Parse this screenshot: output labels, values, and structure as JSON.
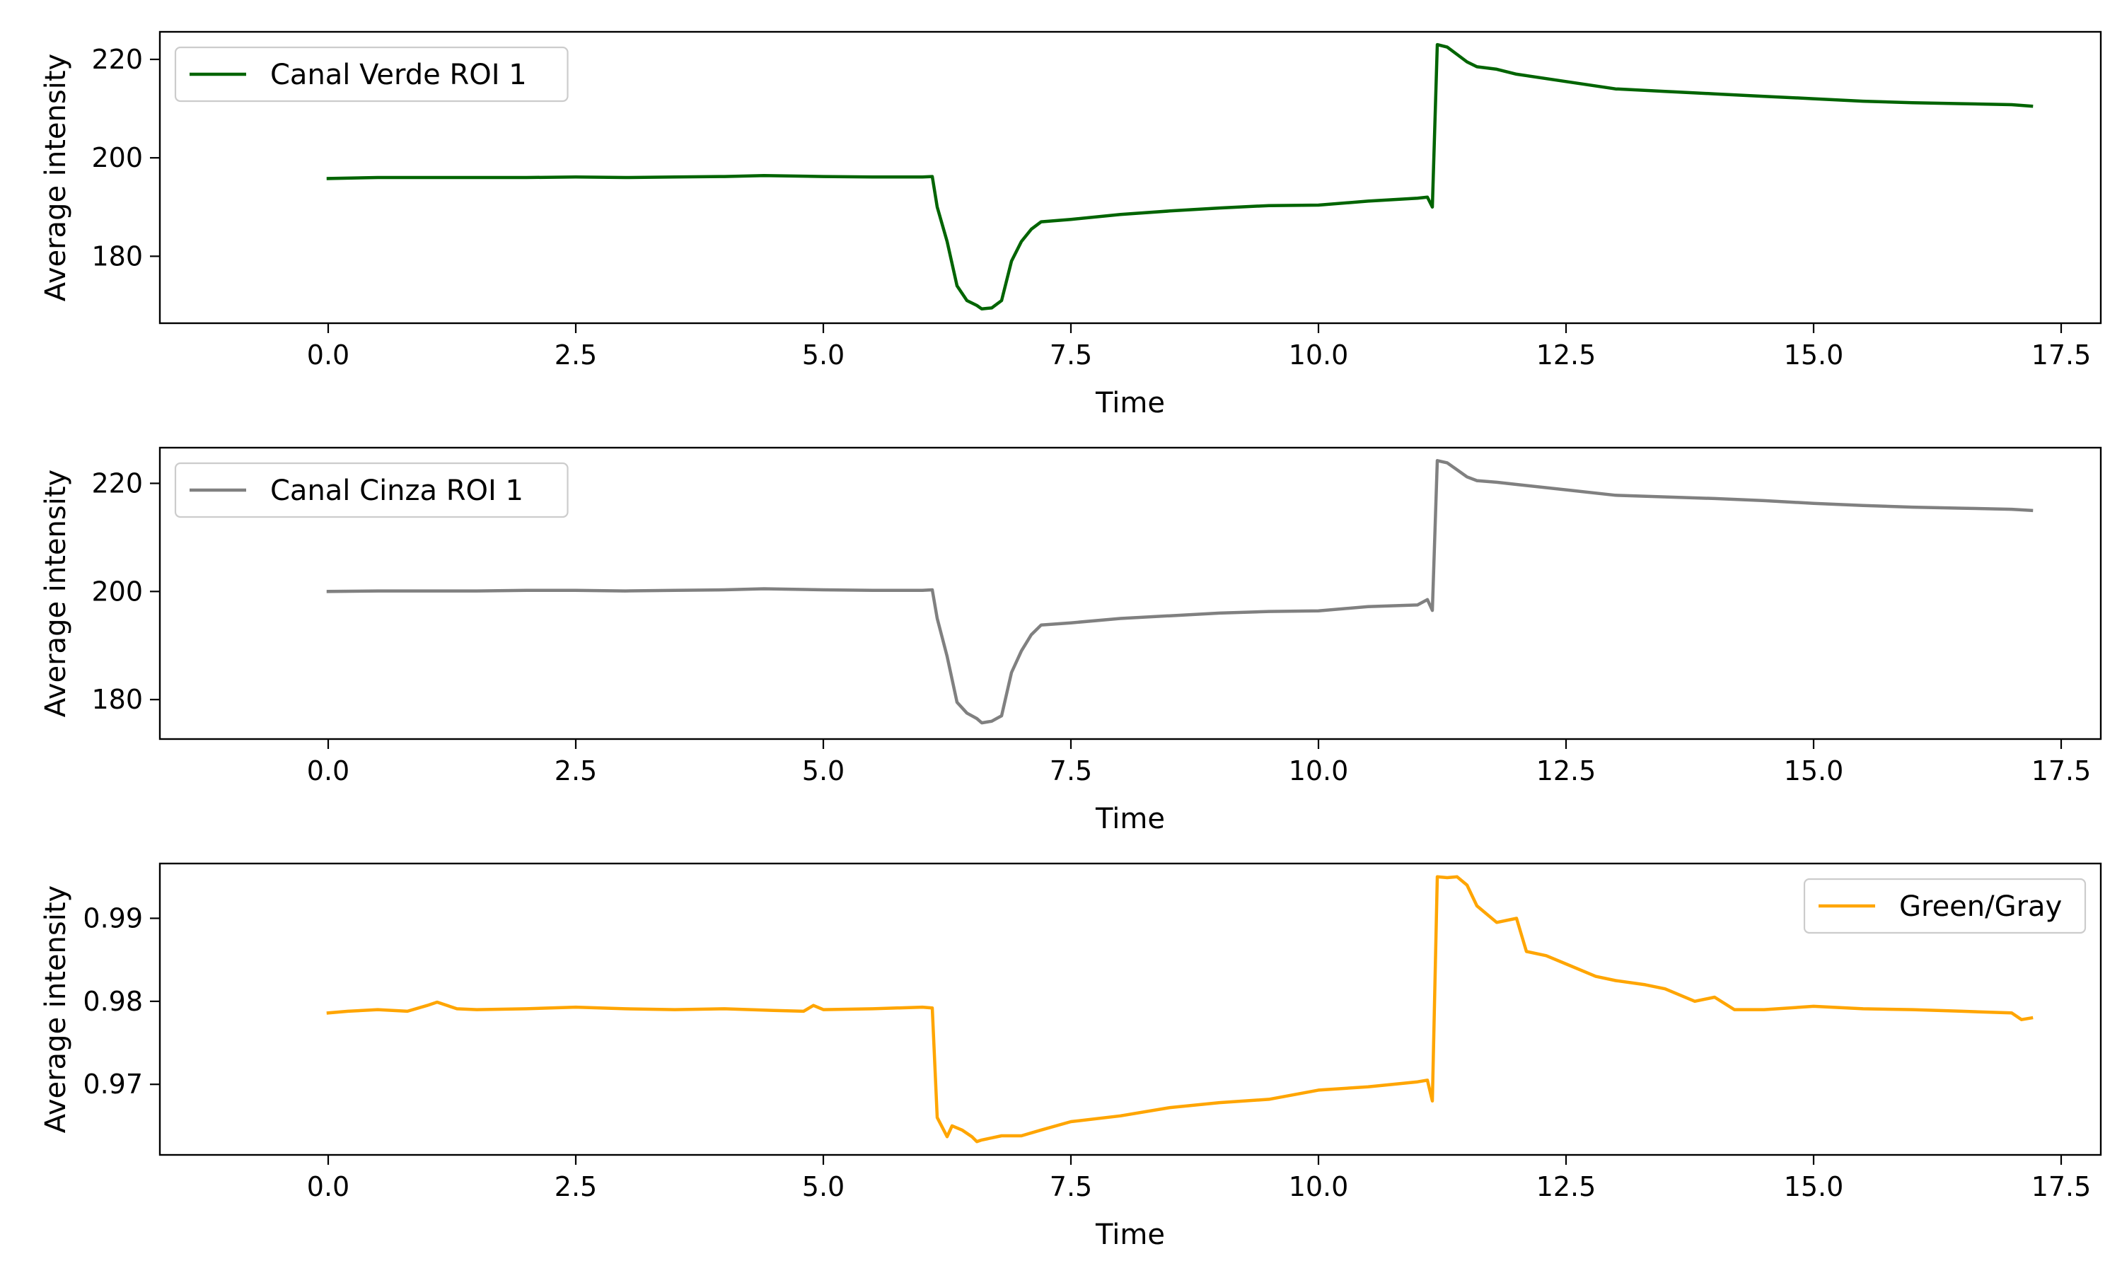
{
  "chart_data": [
    {
      "type": "line",
      "xlabel": "Time",
      "ylabel": "Average intensity",
      "xlim": [
        -1.7,
        17.9
      ],
      "ylim": [
        166.4,
        225.6
      ],
      "xticks": [
        0.0,
        2.5,
        5.0,
        7.5,
        10.0,
        12.5,
        15.0,
        17.5
      ],
      "xtick_labels": [
        "0.0",
        "2.5",
        "5.0",
        "7.5",
        "10.0",
        "12.5",
        "15.0",
        "17.5"
      ],
      "yticks": [
        180,
        200,
        220
      ],
      "ytick_labels": [
        "180",
        "200",
        "220"
      ],
      "grid": false,
      "legend_position": "top-left",
      "series": [
        {
          "name": "Canal Verde ROI 1",
          "color": "#006400",
          "x": [
            0.0,
            0.5,
            1.0,
            1.5,
            2.0,
            2.5,
            3.0,
            3.5,
            4.0,
            4.4,
            5.0,
            5.5,
            6.0,
            6.1,
            6.15,
            6.25,
            6.35,
            6.45,
            6.55,
            6.6,
            6.7,
            6.8,
            6.9,
            7.0,
            7.1,
            7.2,
            7.5,
            8.0,
            8.5,
            9.0,
            9.5,
            10.0,
            10.5,
            11.0,
            11.1,
            11.15,
            11.2,
            11.3,
            11.4,
            11.5,
            11.6,
            11.8,
            12.0,
            12.5,
            13.0,
            13.5,
            14.0,
            14.5,
            15.0,
            15.5,
            16.0,
            16.5,
            17.0,
            17.2
          ],
          "values": [
            195.8,
            196.0,
            196.0,
            196.0,
            196.0,
            196.1,
            196.0,
            196.1,
            196.2,
            196.4,
            196.2,
            196.1,
            196.1,
            196.2,
            190.0,
            183.0,
            174.0,
            171.0,
            170.0,
            169.3,
            169.5,
            171.0,
            179.0,
            183.0,
            185.5,
            187.0,
            187.5,
            188.5,
            189.2,
            189.8,
            190.3,
            190.4,
            191.2,
            191.8,
            192.0,
            190.0,
            223.0,
            222.5,
            221.0,
            219.5,
            218.5,
            218.0,
            217.0,
            215.5,
            214.0,
            213.5,
            213.0,
            212.5,
            212.0,
            211.5,
            211.2,
            211.0,
            210.8,
            210.5
          ]
        }
      ]
    },
    {
      "type": "line",
      "xlabel": "Time",
      "ylabel": "Average intensity",
      "xlim": [
        -1.7,
        17.9
      ],
      "ylim": [
        172.7,
        226.6
      ],
      "xticks": [
        0.0,
        2.5,
        5.0,
        7.5,
        10.0,
        12.5,
        15.0,
        17.5
      ],
      "xtick_labels": [
        "0.0",
        "2.5",
        "5.0",
        "7.5",
        "10.0",
        "12.5",
        "15.0",
        "17.5"
      ],
      "yticks": [
        180,
        200,
        220
      ],
      "ytick_labels": [
        "180",
        "200",
        "220"
      ],
      "grid": false,
      "legend_position": "top-left",
      "series": [
        {
          "name": "Canal Cinza ROI 1",
          "color": "#808080",
          "x": [
            0.0,
            0.5,
            1.0,
            1.5,
            2.0,
            2.5,
            3.0,
            3.5,
            4.0,
            4.4,
            5.0,
            5.5,
            6.0,
            6.1,
            6.15,
            6.25,
            6.35,
            6.45,
            6.55,
            6.6,
            6.7,
            6.8,
            6.9,
            7.0,
            7.1,
            7.2,
            7.5,
            8.0,
            8.5,
            9.0,
            9.5,
            10.0,
            10.5,
            11.0,
            11.1,
            11.15,
            11.2,
            11.3,
            11.4,
            11.5,
            11.6,
            11.8,
            12.0,
            12.5,
            13.0,
            13.5,
            14.0,
            14.5,
            15.0,
            15.5,
            16.0,
            16.5,
            17.0,
            17.2
          ],
          "values": [
            200.0,
            200.1,
            200.1,
            200.1,
            200.2,
            200.2,
            200.1,
            200.2,
            200.3,
            200.5,
            200.3,
            200.2,
            200.2,
            200.3,
            195.0,
            188.0,
            179.5,
            177.5,
            176.5,
            175.7,
            176.0,
            177.0,
            185.0,
            189.0,
            192.0,
            193.8,
            194.2,
            195.0,
            195.5,
            196.0,
            196.3,
            196.4,
            197.2,
            197.5,
            198.5,
            196.5,
            224.2,
            223.8,
            222.5,
            221.2,
            220.5,
            220.2,
            219.8,
            218.8,
            217.8,
            217.5,
            217.2,
            216.8,
            216.3,
            215.9,
            215.6,
            215.4,
            215.2,
            215.0
          ]
        }
      ]
    },
    {
      "type": "line",
      "xlabel": "Time",
      "ylabel": "Average intensity",
      "xlim": [
        -1.7,
        17.9
      ],
      "ylim": [
        0.9615,
        0.9966
      ],
      "xticks": [
        0.0,
        2.5,
        5.0,
        7.5,
        10.0,
        12.5,
        15.0,
        17.5
      ],
      "xtick_labels": [
        "0.0",
        "2.5",
        "5.0",
        "7.5",
        "10.0",
        "12.5",
        "15.0",
        "17.5"
      ],
      "yticks": [
        0.97,
        0.98,
        0.99
      ],
      "ytick_labels": [
        "0.97",
        "0.98",
        "0.99"
      ],
      "grid": false,
      "legend_position": "top-right",
      "series": [
        {
          "name": "Green/Gray",
          "color": "#ffa500",
          "x": [
            0.0,
            0.2,
            0.5,
            0.8,
            1.0,
            1.1,
            1.3,
            1.5,
            2.0,
            2.5,
            3.0,
            3.5,
            4.0,
            4.5,
            4.8,
            4.9,
            5.0,
            5.5,
            6.0,
            6.1,
            6.15,
            6.25,
            6.3,
            6.4,
            6.5,
            6.55,
            6.6,
            6.8,
            7.0,
            7.2,
            7.5,
            8.0,
            8.5,
            9.0,
            9.5,
            10.0,
            10.5,
            11.0,
            11.1,
            11.15,
            11.2,
            11.3,
            11.4,
            11.5,
            11.6,
            11.8,
            12.0,
            12.1,
            12.3,
            12.5,
            12.8,
            13.0,
            13.3,
            13.5,
            13.8,
            14.0,
            14.2,
            14.5,
            15.0,
            15.5,
            16.0,
            16.5,
            17.0,
            17.1,
            17.2
          ],
          "values": [
            0.9786,
            0.9788,
            0.979,
            0.9788,
            0.9795,
            0.9799,
            0.9791,
            0.979,
            0.9791,
            0.9793,
            0.9791,
            0.979,
            0.9791,
            0.9789,
            0.9788,
            0.9795,
            0.979,
            0.9791,
            0.9793,
            0.9792,
            0.966,
            0.9637,
            0.965,
            0.9645,
            0.9637,
            0.9631,
            0.9633,
            0.9638,
            0.9638,
            0.9645,
            0.9655,
            0.9662,
            0.9672,
            0.9678,
            0.9682,
            0.9693,
            0.9697,
            0.9703,
            0.9705,
            0.968,
            0.995,
            0.9949,
            0.995,
            0.994,
            0.9915,
            0.9895,
            0.99,
            0.986,
            0.9855,
            0.9845,
            0.983,
            0.9825,
            0.982,
            0.9815,
            0.98,
            0.9805,
            0.979,
            0.979,
            0.9794,
            0.9791,
            0.979,
            0.9788,
            0.9786,
            0.9778,
            0.978
          ]
        }
      ]
    }
  ]
}
